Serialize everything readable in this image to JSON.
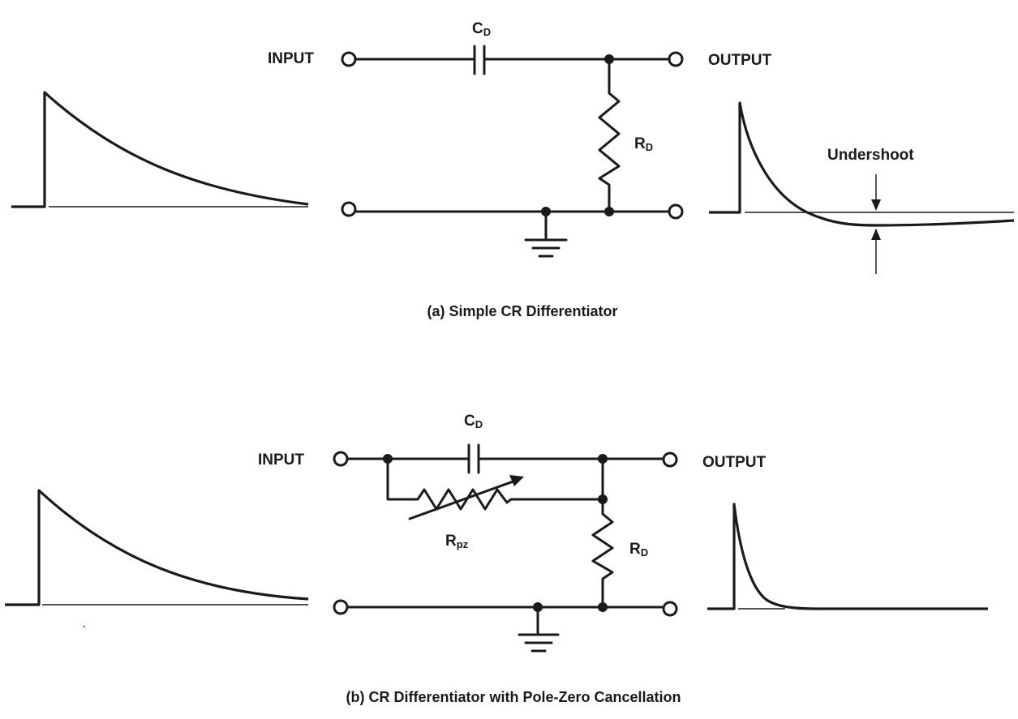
{
  "diagram_a": {
    "input_label": "INPUT",
    "output_label": "OUTPUT",
    "capacitor_label": "C",
    "capacitor_sub": "D",
    "resistor_label": "R",
    "resistor_sub": "D",
    "annotation": "Undershoot",
    "caption": "(a) Simple CR Differentiator"
  },
  "diagram_b": {
    "input_label": "INPUT",
    "output_label": "OUTPUT",
    "capacitor_label": "C",
    "capacitor_sub": "D",
    "resistor_label": "R",
    "resistor_sub": "D",
    "variable_resistor_label": "R",
    "variable_resistor_sub": "pz",
    "caption": "(b) CR Differentiator with Pole-Zero Cancellation"
  }
}
